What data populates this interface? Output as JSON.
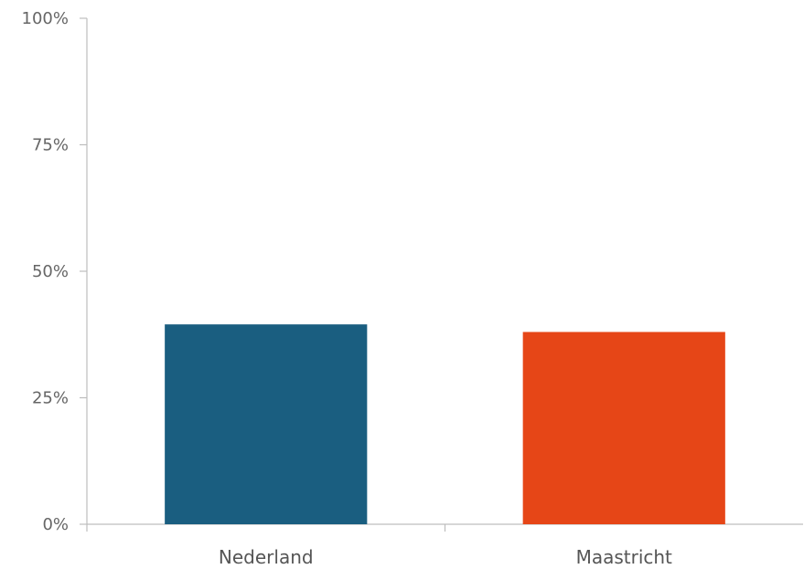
{
  "chart_data": {
    "type": "bar",
    "title": "",
    "xlabel": "",
    "ylabel": "",
    "categories": [
      "Nederland",
      "Maastricht"
    ],
    "values": [
      39.5,
      38
    ],
    "unit": "%",
    "ylim": [
      0,
      100
    ],
    "yticks": [
      0,
      25,
      50,
      75,
      100
    ],
    "ytick_labels": [
      "0%",
      "25%",
      "50%",
      "75%",
      "100%"
    ],
    "colors": [
      "#1a5e80",
      "#e64617"
    ],
    "grid": false,
    "legend": "none"
  }
}
